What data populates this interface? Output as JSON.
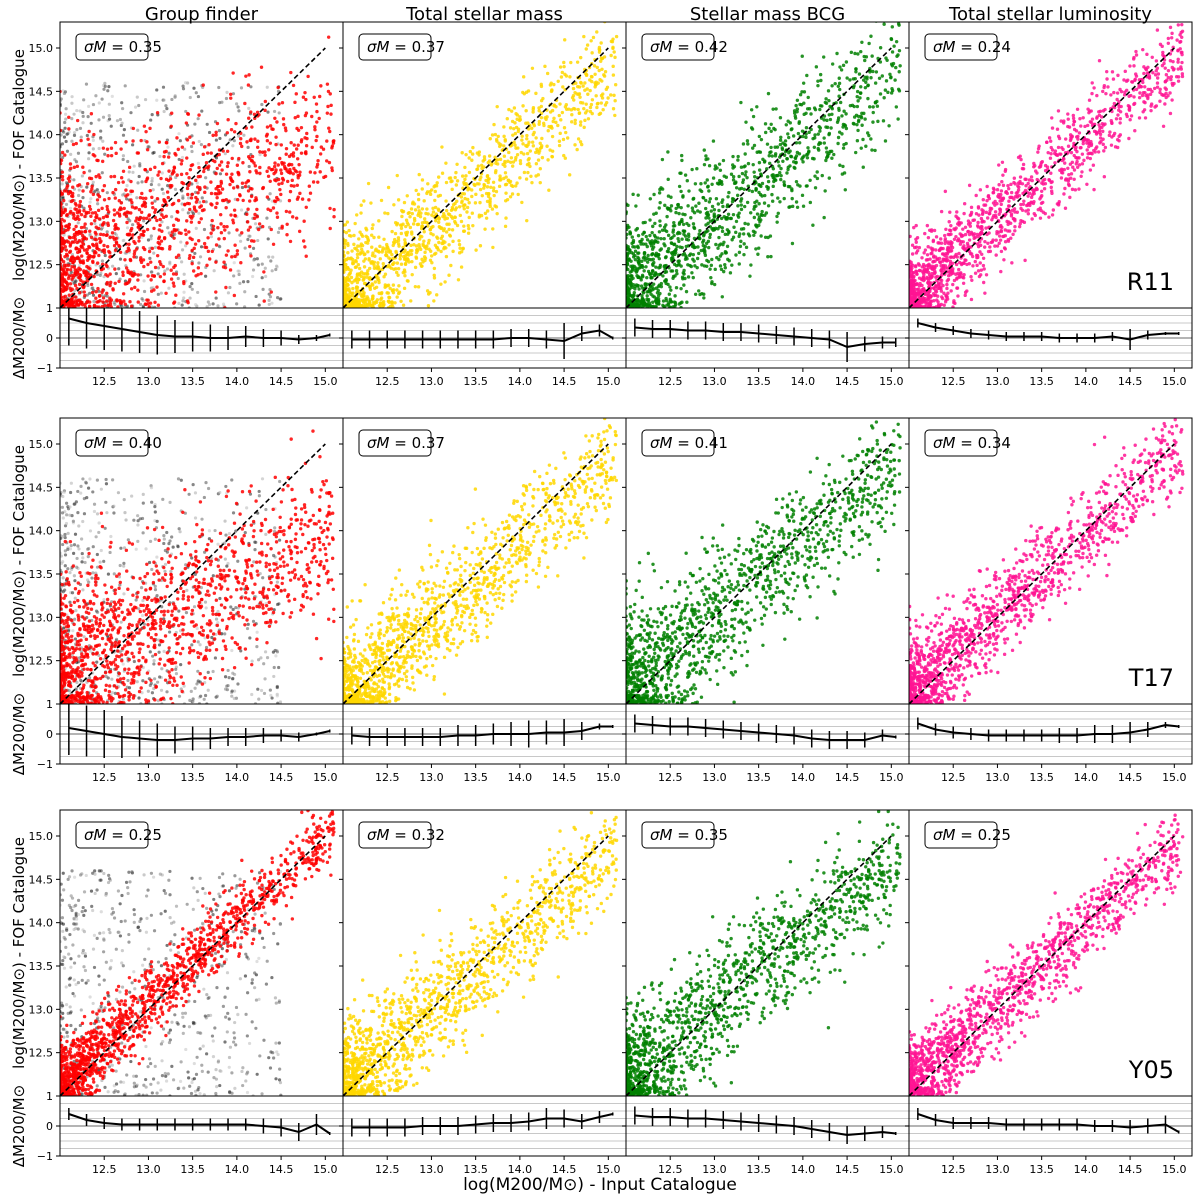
{
  "figure": {
    "column_titles": [
      "Group finder",
      "Total stellar mass",
      "Stellar mass BCG",
      "Total stellar luminosity"
    ],
    "row_labels": [
      "R11",
      "T17",
      "Y05"
    ],
    "main_ylabel": "log(M200/M⊙) - FOF Catalogue",
    "residual_ylabel": "ΔM200/M⊙",
    "xlabel": "log(M200/M⊙) - Input Catalogue",
    "sigma_prefix": "σM ="
  },
  "chart_data": {
    "type": "scatter",
    "xlim": [
      12.0,
      15.2
    ],
    "ylim": [
      12.0,
      15.3
    ],
    "residual_ylim": [
      -1,
      1
    ],
    "x_ticks": [
      12.5,
      13.0,
      13.5,
      14.0,
      14.5,
      15.0
    ],
    "x_tick_labels": [
      "12.5",
      "13.0",
      "13.5",
      "14.0",
      "14.5",
      "15.0"
    ],
    "y_ticks": [
      12.5,
      13.0,
      13.5,
      14.0,
      14.5,
      15.0
    ],
    "y_tick_labels": [
      "12.5",
      "13.0",
      "13.5",
      "14.0",
      "14.5",
      "15.0"
    ],
    "residual_ticks": [
      1,
      0,
      -1
    ],
    "residual_tick_labels": [
      "1",
      "0",
      "−1"
    ],
    "one_to_one_line": [
      12.0,
      15.0
    ],
    "residual_grid": [
      -0.75,
      -0.5,
      -0.25,
      0,
      0.25,
      0.5,
      0.75
    ],
    "column_colors": [
      "#ff0000",
      "#ffd700",
      "#008000",
      "#ff1493"
    ],
    "greyscale_background_columns": [
      0
    ],
    "panels": [
      {
        "row": "R11",
        "method": "Group finder",
        "sigma_M": "0.35",
        "scatter": {
          "slope": 0.45,
          "intercept": 7.05,
          "spread": 0.55,
          "skew": 0.35
        },
        "residual": {
          "x": [
            12.1,
            12.3,
            12.5,
            12.7,
            12.9,
            13.1,
            13.3,
            13.5,
            13.7,
            13.9,
            14.1,
            14.3,
            14.5,
            14.7,
            14.9,
            15.05
          ],
          "mean": [
            0.65,
            0.5,
            0.4,
            0.3,
            0.2,
            0.1,
            0.05,
            0.05,
            0.0,
            0.0,
            0.05,
            0.0,
            0.0,
            -0.05,
            0.0,
            0.1
          ],
          "err": [
            0.9,
            0.85,
            0.8,
            0.75,
            0.7,
            0.65,
            0.55,
            0.5,
            0.45,
            0.4,
            0.35,
            0.3,
            0.25,
            0.15,
            0.1,
            0.05
          ]
        }
      },
      {
        "row": "R11",
        "method": "Total stellar mass",
        "sigma_M": "0.37",
        "scatter": {
          "slope": 0.9,
          "intercept": 1.2,
          "spread": 0.35,
          "skew": 0.15
        },
        "residual": {
          "x": [
            12.1,
            12.3,
            12.5,
            12.7,
            12.9,
            13.1,
            13.3,
            13.5,
            13.7,
            13.9,
            14.1,
            14.3,
            14.5,
            14.7,
            14.9,
            15.05
          ],
          "mean": [
            -0.05,
            -0.05,
            -0.05,
            -0.05,
            -0.05,
            -0.05,
            -0.05,
            -0.05,
            -0.05,
            0.0,
            0.0,
            -0.05,
            -0.1,
            0.15,
            0.25,
            0.0
          ],
          "err": [
            0.3,
            0.3,
            0.3,
            0.3,
            0.3,
            0.3,
            0.3,
            0.3,
            0.3,
            0.3,
            0.3,
            0.3,
            0.6,
            0.25,
            0.2,
            0.05
          ]
        }
      },
      {
        "row": "R11",
        "method": "Stellar mass BCG",
        "sigma_M": "0.42",
        "scatter": {
          "slope": 0.85,
          "intercept": 1.9,
          "spread": 0.42,
          "skew": 0.2
        },
        "residual": {
          "x": [
            12.1,
            12.3,
            12.5,
            12.7,
            12.9,
            13.1,
            13.3,
            13.5,
            13.7,
            13.9,
            14.1,
            14.3,
            14.5,
            14.7,
            14.9,
            15.05
          ],
          "mean": [
            0.35,
            0.3,
            0.3,
            0.25,
            0.25,
            0.2,
            0.2,
            0.15,
            0.1,
            0.05,
            0.0,
            -0.05,
            -0.3,
            -0.2,
            -0.15,
            -0.15
          ],
          "err": [
            0.3,
            0.3,
            0.3,
            0.3,
            0.3,
            0.3,
            0.3,
            0.3,
            0.3,
            0.3,
            0.3,
            0.3,
            0.5,
            0.25,
            0.2,
            0.15
          ]
        }
      },
      {
        "row": "R11",
        "method": "Total stellar luminosity",
        "sigma_M": "0.24",
        "scatter": {
          "slope": 0.92,
          "intercept": 1.05,
          "spread": 0.28,
          "skew": 0.1
        },
        "residual": {
          "x": [
            12.1,
            12.3,
            12.5,
            12.7,
            12.9,
            13.1,
            13.3,
            13.5,
            13.7,
            13.9,
            14.1,
            14.3,
            14.5,
            14.7,
            14.9,
            15.05
          ],
          "mean": [
            0.5,
            0.35,
            0.25,
            0.15,
            0.1,
            0.05,
            0.05,
            0.05,
            0.0,
            0.0,
            0.0,
            0.05,
            -0.05,
            0.1,
            0.15,
            0.15
          ],
          "err": [
            0.15,
            0.15,
            0.15,
            0.15,
            0.15,
            0.15,
            0.15,
            0.15,
            0.15,
            0.15,
            0.15,
            0.15,
            0.35,
            0.15,
            0.05,
            0.05
          ]
        }
      },
      {
        "row": "T17",
        "method": "Group finder",
        "sigma_M": "0.40",
        "scatter": {
          "slope": 0.5,
          "intercept": 6.3,
          "spread": 0.5,
          "skew": 0.3
        },
        "residual": {
          "x": [
            12.1,
            12.3,
            12.5,
            12.7,
            12.9,
            13.1,
            13.3,
            13.5,
            13.7,
            13.9,
            14.1,
            14.3,
            14.5,
            14.7,
            14.9,
            15.05
          ],
          "mean": [
            0.2,
            0.1,
            0.0,
            -0.1,
            -0.15,
            -0.2,
            -0.2,
            -0.15,
            -0.15,
            -0.1,
            -0.1,
            -0.05,
            -0.05,
            -0.1,
            0.0,
            0.1
          ],
          "err": [
            0.9,
            0.85,
            0.8,
            0.7,
            0.6,
            0.55,
            0.45,
            0.4,
            0.35,
            0.3,
            0.3,
            0.25,
            0.2,
            0.15,
            0.05,
            0.05
          ]
        }
      },
      {
        "row": "T17",
        "method": "Total stellar mass",
        "sigma_M": "0.37",
        "scatter": {
          "slope": 0.9,
          "intercept": 1.2,
          "spread": 0.35,
          "skew": 0.15
        },
        "residual": {
          "x": [
            12.1,
            12.3,
            12.5,
            12.7,
            12.9,
            13.1,
            13.3,
            13.5,
            13.7,
            13.9,
            14.1,
            14.3,
            14.5,
            14.7,
            14.9,
            15.05
          ],
          "mean": [
            -0.05,
            -0.1,
            -0.1,
            -0.1,
            -0.1,
            -0.1,
            -0.05,
            -0.05,
            0.0,
            0.0,
            0.0,
            0.05,
            0.05,
            0.1,
            0.25,
            0.25
          ],
          "err": [
            0.3,
            0.3,
            0.3,
            0.3,
            0.3,
            0.3,
            0.35,
            0.35,
            0.35,
            0.4,
            0.45,
            0.4,
            0.45,
            0.3,
            0.1,
            0.05
          ]
        }
      },
      {
        "row": "T17",
        "method": "Stellar mass BCG",
        "sigma_M": "0.41",
        "scatter": {
          "slope": 0.85,
          "intercept": 1.9,
          "spread": 0.42,
          "skew": 0.2
        },
        "residual": {
          "x": [
            12.1,
            12.3,
            12.5,
            12.7,
            12.9,
            13.1,
            13.3,
            13.5,
            13.7,
            13.9,
            14.1,
            14.3,
            14.5,
            14.7,
            14.9,
            15.05
          ],
          "mean": [
            0.35,
            0.3,
            0.25,
            0.25,
            0.2,
            0.15,
            0.1,
            0.05,
            0.0,
            -0.05,
            -0.15,
            -0.2,
            -0.2,
            -0.2,
            -0.05,
            -0.1
          ],
          "err": [
            0.3,
            0.3,
            0.3,
            0.3,
            0.3,
            0.3,
            0.3,
            0.3,
            0.3,
            0.3,
            0.3,
            0.3,
            0.3,
            0.25,
            0.2,
            0.05
          ]
        }
      },
      {
        "row": "T17",
        "method": "Total stellar luminosity",
        "sigma_M": "0.34",
        "scatter": {
          "slope": 0.93,
          "intercept": 0.9,
          "spread": 0.3,
          "skew": 0.1
        },
        "residual": {
          "x": [
            12.1,
            12.3,
            12.5,
            12.7,
            12.9,
            13.1,
            13.3,
            13.5,
            13.7,
            13.9,
            14.1,
            14.3,
            14.5,
            14.7,
            14.9,
            15.05
          ],
          "mean": [
            0.35,
            0.15,
            0.05,
            0.0,
            -0.05,
            -0.05,
            -0.05,
            -0.05,
            -0.05,
            -0.05,
            0.0,
            0.0,
            0.05,
            0.15,
            0.3,
            0.25
          ],
          "err": [
            0.2,
            0.2,
            0.2,
            0.2,
            0.2,
            0.2,
            0.2,
            0.2,
            0.25,
            0.25,
            0.3,
            0.3,
            0.35,
            0.25,
            0.1,
            0.05
          ]
        }
      },
      {
        "row": "Y05",
        "method": "Group finder",
        "sigma_M": "0.25",
        "scatter": {
          "slope": 0.95,
          "intercept": 0.7,
          "spread": 0.22,
          "skew": 0.1
        },
        "residual": {
          "x": [
            12.1,
            12.3,
            12.5,
            12.7,
            12.9,
            13.1,
            13.3,
            13.5,
            13.7,
            13.9,
            14.1,
            14.3,
            14.5,
            14.7,
            14.9,
            15.05
          ],
          "mean": [
            0.4,
            0.2,
            0.1,
            0.05,
            0.05,
            0.05,
            0.05,
            0.05,
            0.05,
            0.05,
            0.05,
            0.0,
            -0.05,
            -0.2,
            0.05,
            -0.25
          ],
          "err": [
            0.2,
            0.2,
            0.2,
            0.2,
            0.2,
            0.2,
            0.2,
            0.2,
            0.2,
            0.2,
            0.2,
            0.25,
            0.3,
            0.3,
            0.35,
            0.05
          ]
        }
      },
      {
        "row": "Y05",
        "method": "Total stellar mass",
        "sigma_M": "0.32",
        "scatter": {
          "slope": 0.9,
          "intercept": 1.25,
          "spread": 0.32,
          "skew": 0.12
        },
        "residual": {
          "x": [
            12.1,
            12.3,
            12.5,
            12.7,
            12.9,
            13.1,
            13.3,
            13.5,
            13.7,
            13.9,
            14.1,
            14.3,
            14.5,
            14.7,
            14.9,
            15.05
          ],
          "mean": [
            -0.05,
            -0.05,
            -0.05,
            -0.05,
            0.0,
            0.0,
            0.0,
            0.05,
            0.1,
            0.1,
            0.15,
            0.25,
            0.25,
            0.15,
            0.3,
            0.4
          ],
          "err": [
            0.3,
            0.3,
            0.3,
            0.3,
            0.3,
            0.3,
            0.3,
            0.3,
            0.3,
            0.3,
            0.3,
            0.35,
            0.3,
            0.25,
            0.2,
            0.05
          ]
        }
      },
      {
        "row": "Y05",
        "method": "Stellar mass BCG",
        "sigma_M": "0.35",
        "scatter": {
          "slope": 0.85,
          "intercept": 1.9,
          "spread": 0.38,
          "skew": 0.18
        },
        "residual": {
          "x": [
            12.1,
            12.3,
            12.5,
            12.7,
            12.9,
            13.1,
            13.3,
            13.5,
            13.7,
            13.9,
            14.1,
            14.3,
            14.5,
            14.7,
            14.9,
            15.05
          ],
          "mean": [
            0.35,
            0.3,
            0.3,
            0.25,
            0.25,
            0.2,
            0.15,
            0.1,
            0.05,
            0.0,
            -0.1,
            -0.2,
            -0.3,
            -0.25,
            -0.2,
            -0.25
          ],
          "err": [
            0.3,
            0.3,
            0.3,
            0.3,
            0.3,
            0.3,
            0.3,
            0.3,
            0.3,
            0.3,
            0.3,
            0.3,
            0.3,
            0.25,
            0.2,
            0.05
          ]
        }
      },
      {
        "row": "Y05",
        "method": "Total stellar luminosity",
        "sigma_M": "0.25",
        "scatter": {
          "slope": 0.93,
          "intercept": 0.9,
          "spread": 0.25,
          "skew": 0.1
        },
        "residual": {
          "x": [
            12.1,
            12.3,
            12.5,
            12.7,
            12.9,
            13.1,
            13.3,
            13.5,
            13.7,
            13.9,
            14.1,
            14.3,
            14.5,
            14.7,
            14.9,
            15.05
          ],
          "mean": [
            0.4,
            0.2,
            0.1,
            0.1,
            0.1,
            0.05,
            0.05,
            0.05,
            0.05,
            0.05,
            0.0,
            0.0,
            -0.05,
            0.0,
            0.05,
            -0.2
          ],
          "err": [
            0.2,
            0.2,
            0.2,
            0.2,
            0.2,
            0.2,
            0.2,
            0.2,
            0.2,
            0.2,
            0.2,
            0.2,
            0.25,
            0.25,
            0.3,
            0.05
          ]
        }
      }
    ]
  }
}
